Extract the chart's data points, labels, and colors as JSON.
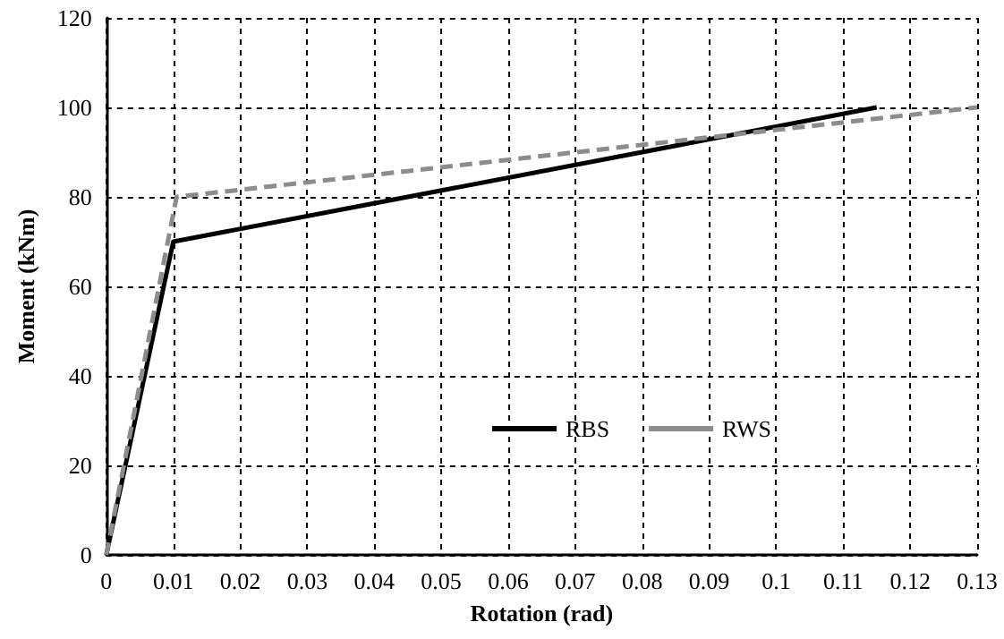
{
  "chart_data": {
    "type": "line",
    "xlabel": "Rotation (rad)",
    "ylabel": "Moment (kNm)",
    "series": [
      {
        "name": "RBS",
        "color": "#000000",
        "x": [
          0,
          0.01,
          0.115
        ],
        "values": [
          0,
          70,
          100
        ],
        "line_style": "solid"
      },
      {
        "name": "RWS",
        "color": "#8c8c8c",
        "x": [
          0,
          0.0105,
          0.13
        ],
        "values": [
          0,
          80,
          100
        ],
        "line_style": "dashed"
      }
    ],
    "xlim": [
      0,
      0.13
    ],
    "xticks": [
      0,
      0.01,
      0.02,
      0.03,
      0.04,
      0.05,
      0.06,
      0.07,
      0.08,
      0.09,
      0.1,
      0.11,
      0.12,
      0.13
    ],
    "ylim": [
      0,
      120
    ],
    "yticks": [
      0,
      20,
      40,
      60,
      80,
      100,
      120
    ],
    "grid": true,
    "legend": "bottom right",
    "marker": "none"
  }
}
